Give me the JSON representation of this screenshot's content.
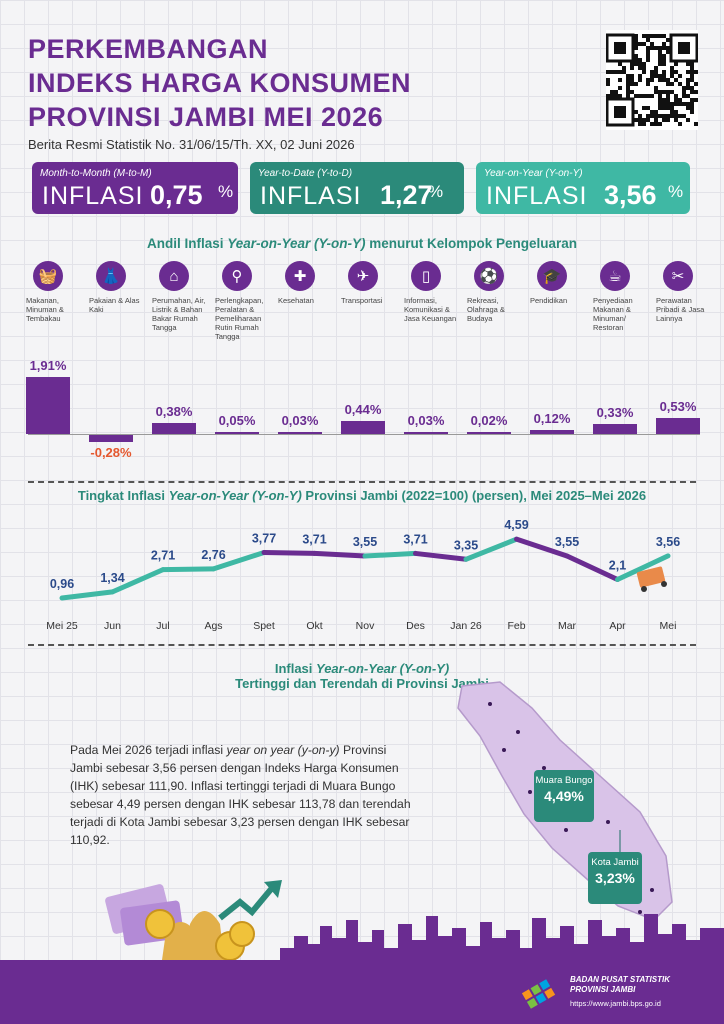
{
  "header": {
    "title_lines": [
      "PERKEMBANGAN",
      "INDEKS HARGA KONSUMEN",
      "PROVINSI JAMBI MEI 2026"
    ],
    "subtitle": "Berita Resmi Statistik No. 31/06/15/Th. XX, 02 Juni 2026"
  },
  "cards": [
    {
      "label": "Month-to-Month (M-to-M)",
      "word": "INFLASI",
      "value": "0,75",
      "unit": "%",
      "color": "#6a2c91"
    },
    {
      "label": "Year-to-Date (Y-to-D)",
      "word": "INFLASI",
      "value": "1,27",
      "unit": "%",
      "color": "#2b8a7a"
    },
    {
      "label": "Year-on-Year (Y-on-Y)",
      "word": "INFLASI",
      "value": "3,56",
      "unit": "%",
      "color": "#3fb8a4"
    }
  ],
  "andil_title": {
    "pre": "Andil Inflasi ",
    "italic": "Year-on-Year (Y-on-Y)",
    "post": " menurut Kelompok Pengeluaran"
  },
  "groups": [
    {
      "name": "Makanan, Minuman & Tembakau",
      "icon": "food-basket-icon",
      "glyph": "🧺",
      "value": 1.91,
      "label": "1,91%"
    },
    {
      "name": "Pakaian & Alas Kaki",
      "icon": "dress-icon",
      "glyph": "👗",
      "value": -0.28,
      "label": "-0,28%"
    },
    {
      "name": "Perumahan, Air, Listrik & Bahan Bakar Rumah Tangga",
      "icon": "house-icon",
      "glyph": "⌂",
      "value": 0.38,
      "label": "0,38%"
    },
    {
      "name": "Perlengkapan, Peralatan & Pemeliharaan Rutin Rumah Tangga",
      "icon": "iron-icon",
      "glyph": "⚲",
      "value": 0.05,
      "label": "0,05%"
    },
    {
      "name": "Kesehatan",
      "icon": "medical-kit-icon",
      "glyph": "✚",
      "value": 0.03,
      "label": "0,03%"
    },
    {
      "name": "Transportasi",
      "icon": "airplane-icon",
      "glyph": "✈",
      "value": 0.44,
      "label": "0,44%"
    },
    {
      "name": "Informasi, Komunikasi & Jasa Keuangan",
      "icon": "phone-icon",
      "glyph": "▯",
      "value": 0.03,
      "label": "0,03%"
    },
    {
      "name": "Rekreasi, Olahraga & Budaya",
      "icon": "sport-icon",
      "glyph": "⚽",
      "value": 0.02,
      "label": "0,02%"
    },
    {
      "name": "Pendidikan",
      "icon": "graduation-cap-icon",
      "glyph": "🎓",
      "value": 0.12,
      "label": "0,12%"
    },
    {
      "name": "Penyediaan Makanan & Minuman/ Restoran",
      "icon": "restaurant-icon",
      "glyph": "☕",
      "value": 0.33,
      "label": "0,33%"
    },
    {
      "name": "Perawatan Pribadi & Jasa Lainnya",
      "icon": "tools-icon",
      "glyph": "✂",
      "value": 0.53,
      "label": "0,53%"
    }
  ],
  "trend_title": {
    "pre": "Tingkat Inflasi ",
    "italic": "Year-on-Year (Y-on-Y)",
    "post": " Provinsi Jambi (2022=100) (persen), Mei 2025–Mei 2026"
  },
  "chart_data": {
    "type": "line",
    "categories": [
      "Mei 25",
      "Jun",
      "Jul",
      "Ags",
      "Spet",
      "Okt",
      "Nov",
      "Des",
      "Jan 26",
      "Feb",
      "Mar",
      "Apr",
      "Mei"
    ],
    "values": [
      0.96,
      1.34,
      2.71,
      2.76,
      3.77,
      3.71,
      3.55,
      3.71,
      3.35,
      4.59,
      3.55,
      2.1,
      3.56
    ],
    "labels": [
      "0,96",
      "1,34",
      "2,71",
      "2,76",
      "3,77",
      "3,71",
      "3,55",
      "3,71",
      "3,35",
      "4,59",
      "3,55",
      "2,1",
      "3,56"
    ],
    "colors": {
      "up": "#6a2c91",
      "down": "#3fb8a4"
    }
  },
  "map_section": {
    "title_line1_pre": "Inflasi ",
    "title_line1_italic": "Year-on-Year (Y-on-Y)",
    "title_line2": "Tertinggi dan Terendah di Provinsi Jambi",
    "paragraph_parts": [
      "Pada Mei 2026 terjadi inflasi ",
      "year on year (y-on-y)",
      " Provinsi Jambi sebesar 3,56 persen dengan Indeks Harga Konsumen (IHK) sebesar 111,90. Inflasi tertinggi terjadi di Muara Bungo sebesar 4,49 persen dengan IHK sebesar 113,78 dan terendah terjadi di Kota Jambi sebesar 3,23 persen dengan IHK sebesar 110,92."
    ],
    "highest": {
      "name": "Muara Bungo",
      "value": "4,49%"
    },
    "lowest": {
      "name": "Kota Jambi",
      "value": "3,23%"
    }
  },
  "footer": {
    "org_line1": "BADAN PUSAT STATISTIK",
    "org_line2": "PROVINSI JAMBI",
    "url": "https://www.jambi.bps.go.id"
  }
}
